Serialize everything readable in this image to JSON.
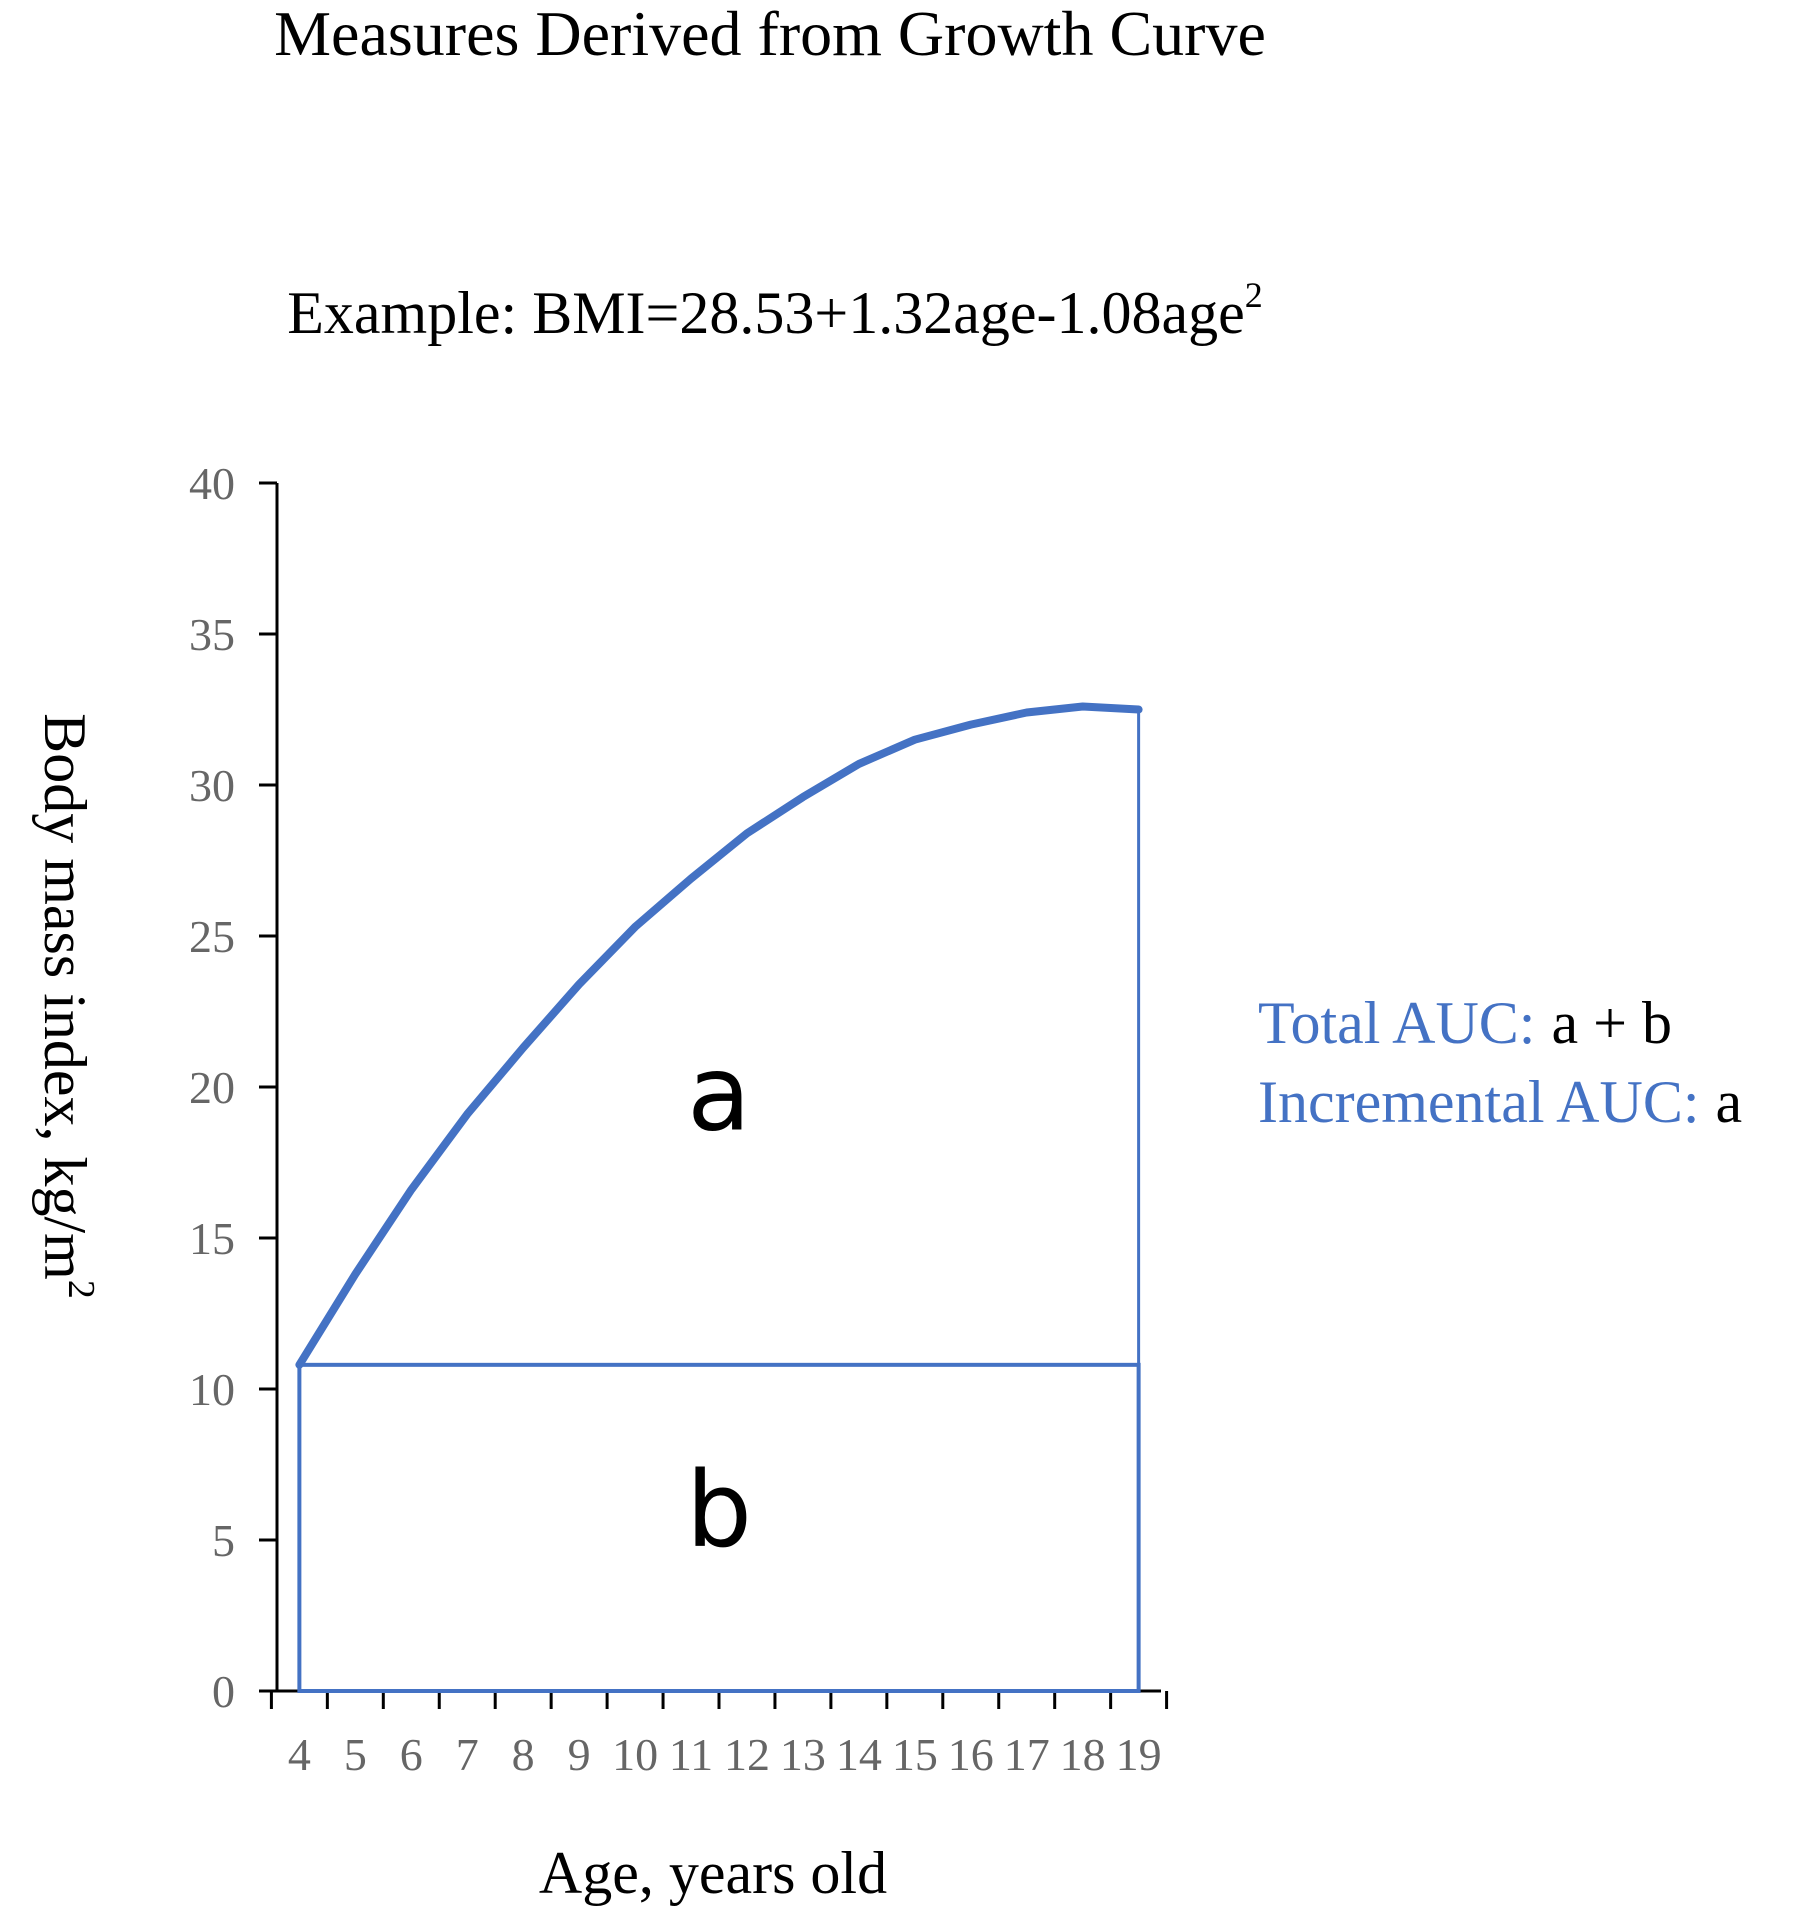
{
  "chart_data": {
    "type": "area",
    "title": "Measures Derived from Growth Curve",
    "subtitle": {
      "prefix": "Example: BMI=28.53+1.32age-1.08age",
      "superscript": "2"
    },
    "xlabel": "Age, years old",
    "ylabel": {
      "text": "Body mass index, kg/m",
      "superscript": "2"
    },
    "xlim": [
      3.6,
      19.4
    ],
    "ylim": [
      0,
      40
    ],
    "x_ticks": [
      4,
      5,
      6,
      7,
      8,
      9,
      10,
      11,
      12,
      13,
      14,
      15,
      16,
      17,
      18,
      19
    ],
    "y_ticks": [
      0,
      5,
      10,
      15,
      20,
      25,
      30,
      35,
      40
    ],
    "grid": false,
    "baseline": 10.8,
    "series": [
      {
        "x": [
          4,
          5,
          6,
          7,
          8,
          9,
          10,
          11,
          12,
          13,
          14,
          15,
          16,
          17,
          18,
          19
        ],
        "values": [
          10.8,
          13.8,
          16.6,
          19.1,
          21.3,
          23.4,
          25.3,
          26.9,
          28.4,
          29.6,
          30.7,
          31.5,
          32.0,
          32.4,
          32.6,
          32.5
        ]
      }
    ],
    "regions": [
      {
        "label": "a"
      },
      {
        "label": "b"
      }
    ],
    "annotations": {
      "total": {
        "label": "Total AUC:",
        "value": "a + b"
      },
      "incremental": {
        "label": "Incremental AUC:",
        "value": "a"
      }
    },
    "colors": {
      "line": "#4472C4",
      "annotation": "#4472C4",
      "axis": "#000000",
      "tick_label": "#666666",
      "text": "#000000"
    }
  }
}
